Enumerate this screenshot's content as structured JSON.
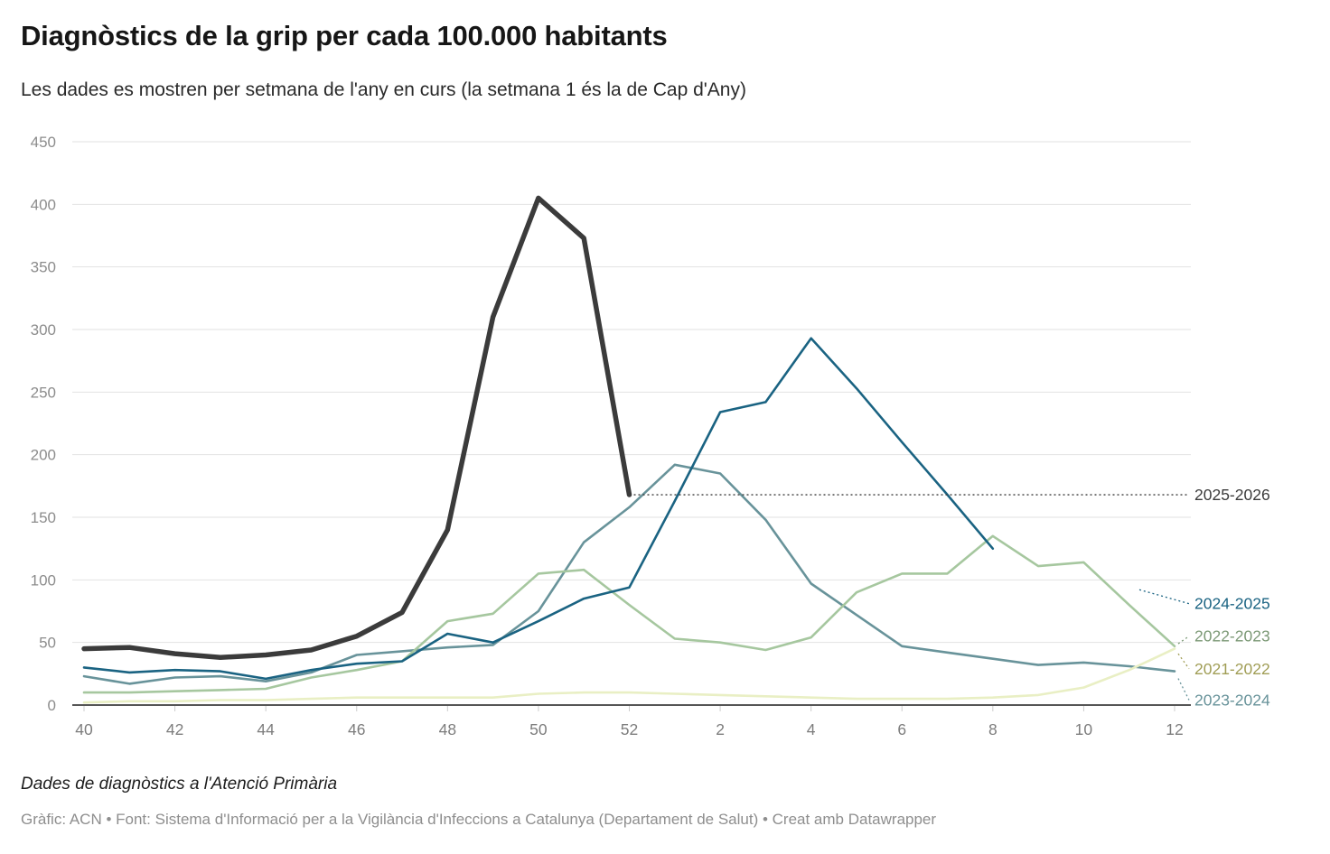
{
  "header": {
    "title": "Diagnòstics de la grip per cada 100.000 habitants",
    "subtitle": "Les dades es mostren per setmana de l'any en curs (la setmana 1 és la de Cap d'Any)"
  },
  "footer": {
    "note": "Dades de diagnòstics a l'Atenció Primària",
    "credits": "Gràfic: ACN • Font: Sistema d'Informació per a la Vigilància d'Infeccions a Catalunya (Departament de Salut) • Creat amb Datawrapper"
  },
  "chart_data": {
    "type": "line",
    "x_weeks": [
      40,
      41,
      42,
      43,
      44,
      45,
      46,
      47,
      48,
      49,
      50,
      51,
      52,
      1,
      2,
      3,
      4,
      5,
      6,
      7,
      8,
      9,
      10,
      11,
      12
    ],
    "x_ticks": [
      40,
      42,
      44,
      46,
      48,
      50,
      52,
      2,
      4,
      6,
      8,
      10,
      12
    ],
    "ylim": [
      0,
      450
    ],
    "y_ticks": [
      0,
      50,
      100,
      150,
      200,
      250,
      300,
      350,
      400,
      450
    ],
    "grid": "horizontal",
    "legend_position": "right-edge-labels",
    "series": [
      {
        "name": "2025-2026",
        "color": "#3b3b3b",
        "label_color": "#3b3b3b",
        "stroke_width": 5.5,
        "values": [
          45,
          46,
          41,
          38,
          40,
          44,
          55,
          74,
          140,
          310,
          405,
          373,
          168,
          null,
          null,
          null,
          null,
          null,
          null,
          null,
          null,
          null,
          null,
          null,
          null
        ]
      },
      {
        "name": "2024-2025",
        "color": "#1a6382",
        "label_color": "#1a6382",
        "stroke_width": 2.6,
        "values": [
          30,
          26,
          28,
          27,
          21,
          28,
          33,
          35,
          57,
          50,
          67,
          85,
          94,
          163,
          234,
          242,
          293,
          253,
          210,
          168,
          125,
          null,
          null,
          null,
          null
        ]
      },
      {
        "name": "2022-2023",
        "color": "#a6c79f",
        "label_color": "#7c9976",
        "stroke_width": 2.6,
        "values": [
          10,
          10,
          11,
          12,
          13,
          22,
          28,
          35,
          67,
          73,
          105,
          108,
          80,
          53,
          50,
          44,
          54,
          90,
          105,
          105,
          135,
          111,
          114,
          80,
          47
        ]
      },
      {
        "name": "2021-2022",
        "color": "#e9efc4",
        "label_color": "#a09d55",
        "stroke_width": 2.6,
        "values": [
          2,
          3,
          3,
          4,
          4,
          5,
          6,
          6,
          6,
          6,
          9,
          10,
          10,
          9,
          8,
          7,
          6,
          5,
          5,
          5,
          6,
          8,
          14,
          28,
          45
        ]
      },
      {
        "name": "2023-2024",
        "color": "#68939a",
        "label_color": "#68939a",
        "stroke_width": 2.6,
        "values": [
          23,
          17,
          22,
          23,
          19,
          26,
          40,
          43,
          46,
          48,
          75,
          130,
          158,
          192,
          185,
          148,
          97,
          72,
          47,
          42,
          37,
          32,
          34,
          31,
          27
        ]
      }
    ],
    "right_labels": [
      {
        "series": "2025-2026",
        "label_value": 168,
        "connector": "full"
      },
      {
        "series": "2024-2025",
        "label_value": 81,
        "connector": "stub"
      },
      {
        "series": "2022-2023",
        "label_value": 55,
        "connector": "stub"
      },
      {
        "series": "2021-2022",
        "label_value": 29,
        "connector": "stub"
      },
      {
        "series": "2023-2024",
        "label_value": 4,
        "connector": "stub"
      }
    ]
  }
}
